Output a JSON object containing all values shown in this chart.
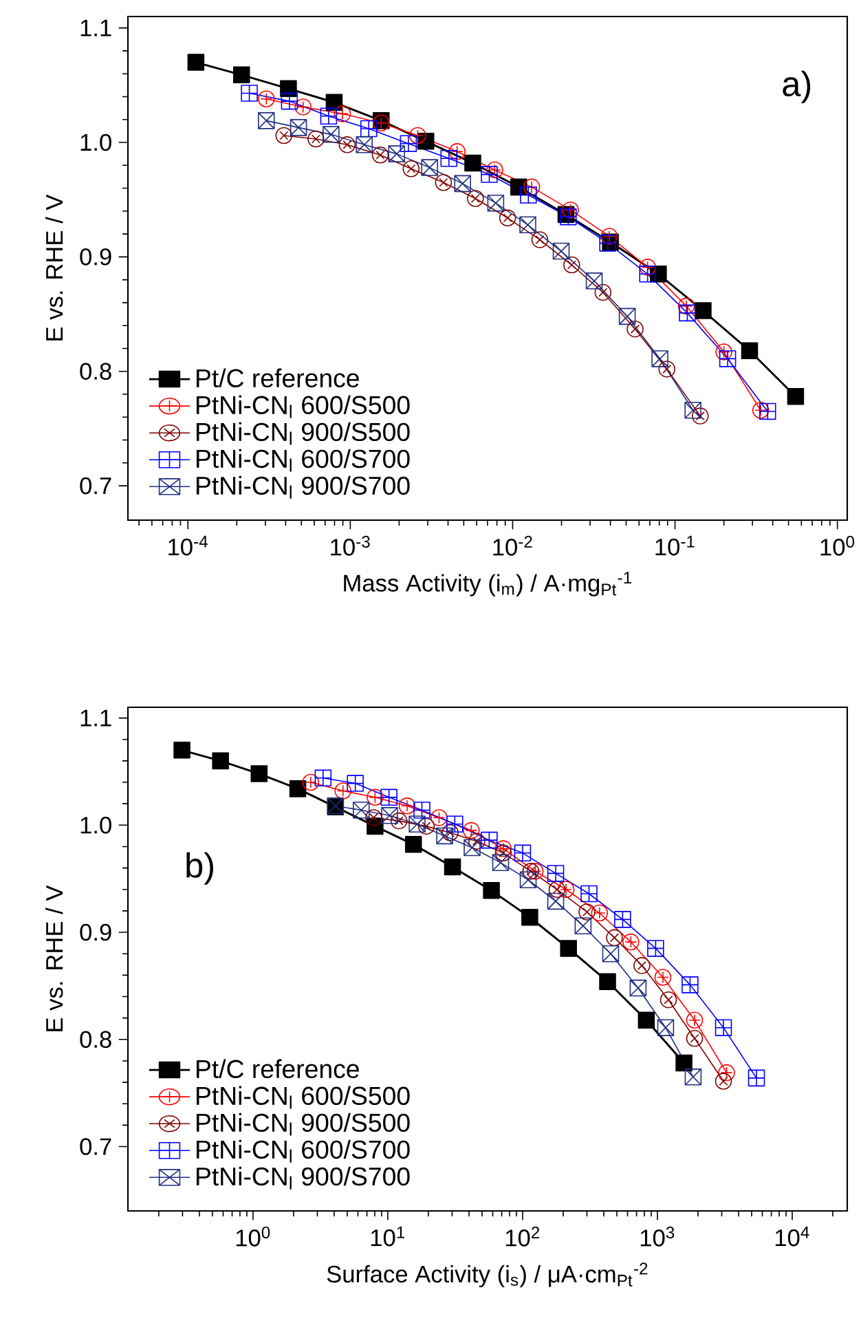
{
  "chart_data": [
    {
      "type": "line",
      "xlabel": "Mass Activity (i$_{m}$) / A·mg$_{Pt}$$^{-1}$",
      "ylabel": "E vs. RHE / V",
      "log": "x",
      "legend": "bottom left",
      "line_style": "solid",
      "xlim": [
        4.27e-05,
        1.15
      ],
      "ylim": [
        0.67,
        1.11
      ],
      "xticks": [
        {
          "value": 0.0001,
          "label": "10$^{-4}$"
        },
        {
          "value": 0.001,
          "label": "10$^{-3}$"
        },
        {
          "value": 0.01,
          "label": "10$^{-2}$"
        },
        {
          "value": 0.1,
          "label": "10$^{-1}$"
        },
        {
          "value": 1,
          "label": "10$^{0}$"
        }
      ],
      "yticks": [
        0.7,
        0.8,
        0.9,
        {
          "value": 1.0,
          "label": "1.0"
        },
        1.1
      ],
      "annotations": [
        "a)"
      ],
      "series": [
        {
          "name": "Pt/C reference",
          "color": "#000000",
          "marker": "square",
          "x": [
            0.000112,
            0.000214,
            0.000416,
            0.000796,
            0.00155,
            0.00292,
            0.00568,
            0.0109,
            0.0213,
            0.04,
            0.079,
            0.149,
            0.288,
            0.553
          ],
          "values": [
            1.07,
            1.059,
            1.047,
            1.035,
            1.019,
            1.001,
            0.982,
            0.961,
            0.937,
            0.913,
            0.885,
            0.853,
            0.818,
            0.778
          ]
        },
        {
          "name": "PtNi-CN$_{l}$ 600/S500",
          "color": "#ff0000",
          "marker": "circle",
          "x": [
            0.000304,
            0.000512,
            0.000895,
            0.00155,
            0.0026,
            0.00455,
            0.00776,
            0.0131,
            0.0227,
            0.0394,
            0.0678,
            0.1175,
            0.2,
            0.337
          ],
          "values": [
            1.038,
            1.031,
            1.025,
            1.017,
            1.006,
            0.992,
            0.976,
            0.961,
            0.941,
            0.918,
            0.891,
            0.857,
            0.817,
            0.766
          ]
        },
        {
          "name": "PtNi-CN$_{l}$ 900/S500",
          "color": "#800000",
          "marker": "circle",
          "x": [
            0.00039,
            0.000614,
            0.000957,
            0.00153,
            0.00237,
            0.00375,
            0.0059,
            0.00931,
            0.0147,
            0.0231,
            0.036,
            0.0568,
            0.0891,
            0.143
          ],
          "values": [
            1.006,
            1.003,
            0.998,
            0.989,
            0.977,
            0.965,
            0.951,
            0.934,
            0.915,
            0.893,
            0.869,
            0.837,
            0.802,
            0.761
          ]
        },
        {
          "name": "PtNi-CN$_{l}$ 600/S700",
          "color": "#0000ff",
          "marker": "square",
          "x": [
            0.000239,
            0.000422,
            0.000736,
            0.0013,
            0.00228,
            0.00405,
            0.00718,
            0.0125,
            0.022,
            0.0385,
            0.0678,
            0.119,
            0.211,
            0.372
          ],
          "values": [
            1.043,
            1.036,
            1.023,
            1.012,
            0.999,
            0.986,
            0.972,
            0.954,
            0.935,
            0.912,
            0.885,
            0.851,
            0.811,
            0.765
          ]
        },
        {
          "name": "PtNi-CN$_{l}$ 900/S700",
          "color": "#1f2f80",
          "marker": "square",
          "x": [
            0.000304,
            0.00048,
            0.000761,
            0.00122,
            0.00193,
            0.00308,
            0.00492,
            0.00787,
            0.0124,
            0.0199,
            0.0318,
            0.0508,
            0.0807,
            0.129
          ],
          "values": [
            1.019,
            1.013,
            1.007,
            0.998,
            0.99,
            0.978,
            0.964,
            0.947,
            0.928,
            0.905,
            0.879,
            0.848,
            0.811,
            0.766
          ]
        }
      ]
    },
    {
      "type": "line",
      "xlabel": "Surface Activity (i$_{s}$) / μA·cm$_{Pt}$$^{-2}$",
      "ylabel": "E vs. RHE / V",
      "log": "x",
      "legend": "bottom left",
      "line_style": "solid",
      "xlim": [
        0.118,
        25600
      ],
      "ylim": [
        0.64,
        1.11
      ],
      "xticks": [
        {
          "value": 1,
          "label": "10$^{0}$"
        },
        {
          "value": 10,
          "label": "10$^{1}$"
        },
        {
          "value": 100,
          "label": "10$^{2}$"
        },
        {
          "value": 1000,
          "label": "10$^{3}$"
        },
        {
          "value": 10000,
          "label": "10$^{4}$"
        }
      ],
      "yticks": [
        0.7,
        0.8,
        0.9,
        {
          "value": 1.0,
          "label": "1.0"
        },
        1.1
      ],
      "annotations": [
        "b)"
      ],
      "series": [
        {
          "name": "Pt/C reference",
          "color": "#000000",
          "marker": "square",
          "x": [
            0.297,
            0.574,
            1.11,
            2.15,
            4.09,
            8.04,
            15.5,
            30.2,
            58.7,
            113,
            219,
            427,
            828,
            1574
          ],
          "values": [
            1.07,
            1.06,
            1.048,
            1.034,
            1.017,
            0.999,
            0.982,
            0.961,
            0.939,
            0.914,
            0.885,
            0.854,
            0.818,
            0.778
          ]
        },
        {
          "name": "PtNi-CN$_{l}$ 600/S500",
          "color": "#ff0000",
          "marker": "circle",
          "x": [
            2.68,
            4.65,
            8.04,
            13.9,
            24.0,
            41.6,
            71.9,
            124,
            210,
            372,
            635,
            1099,
            1888,
            3260
          ],
          "values": [
            1.04,
            1.032,
            1.026,
            1.018,
            1.007,
            0.995,
            0.978,
            0.957,
            0.94,
            0.918,
            0.891,
            0.858,
            0.818,
            0.769
          ]
        },
        {
          "name": "PtNi-CN$_{l}$ 900/S500",
          "color": "#800000",
          "marker": "circle",
          "x": [
            7.85,
            12.1,
            19.3,
            29.0,
            45.7,
            71.9,
            115,
            180,
            300,
            480,
            767,
            1208,
            1888,
            3090
          ],
          "values": [
            1.007,
            1.004,
            0.999,
            0.993,
            0.985,
            0.974,
            0.957,
            0.94,
            0.919,
            0.895,
            0.869,
            0.837,
            0.801,
            0.761
          ]
        },
        {
          "name": "PtNi-CN$_{l}$ 600/S700",
          "color": "#0000ff",
          "marker": "square",
          "x": [
            3.31,
            5.74,
            10.2,
            17.9,
            31.4,
            56.5,
            100,
            176,
            311,
            552,
            970,
            1746,
            3090,
            5430
          ],
          "values": [
            1.044,
            1.039,
            1.026,
            1.014,
            1.001,
            0.986,
            0.974,
            0.955,
            0.936,
            0.912,
            0.885,
            0.851,
            0.811,
            0.764
          ]
        },
        {
          "name": "PtNi-CN$_{l}$ 900/S700",
          "color": "#1f2f80",
          "marker": "square",
          "x": [
            4.09,
            6.35,
            10.3,
            16.5,
            26.4,
            42.2,
            68.7,
            110,
            176,
            281,
            450,
            719,
            1151,
            1841
          ],
          "values": [
            1.018,
            1.014,
            1.009,
            1.001,
            0.99,
            0.979,
            0.965,
            0.949,
            0.929,
            0.906,
            0.88,
            0.848,
            0.811,
            0.765
          ]
        }
      ]
    }
  ]
}
